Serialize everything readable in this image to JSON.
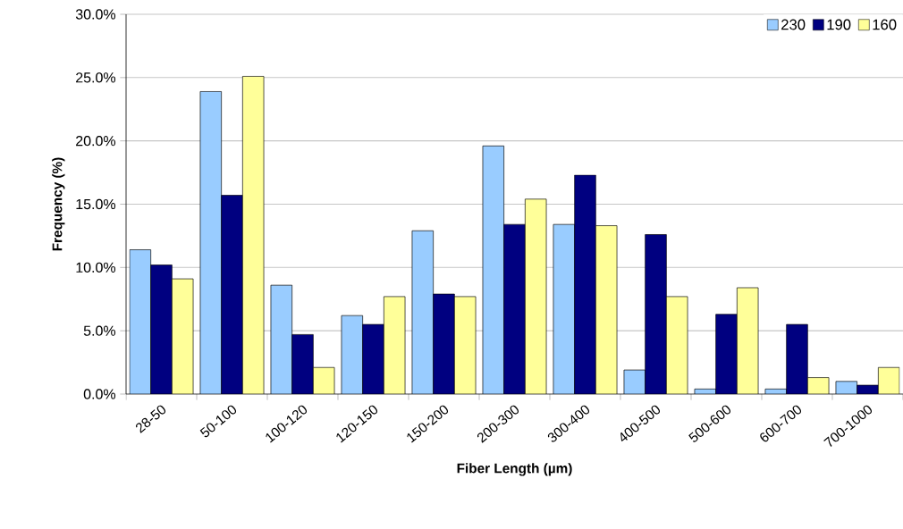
{
  "chart_data": {
    "type": "bar",
    "xlabel": "Fiber Length (µm)",
    "ylabel": "Frequency (%)",
    "categories": [
      "28-50",
      "50-100",
      "100-120",
      "120-150",
      "150-200",
      "200-300",
      "300-400",
      "400-500",
      "500-600",
      "600-700",
      "700-1000"
    ],
    "series": [
      {
        "name": "230",
        "color": "#99ccff",
        "values": [
          11.4,
          23.9,
          8.6,
          6.2,
          12.9,
          19.6,
          13.4,
          1.9,
          0.4,
          0.4,
          1.0
        ]
      },
      {
        "name": "190",
        "color": "#000080",
        "values": [
          10.2,
          15.7,
          4.7,
          5.5,
          7.9,
          13.4,
          17.3,
          12.6,
          6.3,
          5.5,
          0.7
        ]
      },
      {
        "name": "160",
        "color": "#ffff99",
        "values": [
          9.1,
          25.1,
          2.1,
          7.7,
          7.7,
          15.4,
          13.3,
          7.7,
          8.4,
          1.3,
          2.1
        ]
      }
    ],
    "ylim": [
      0,
      30
    ],
    "yticks": [
      {
        "value": 0,
        "label": "0.0%"
      },
      {
        "value": 5,
        "label": "5.0%"
      },
      {
        "value": 10,
        "label": "10.0%"
      },
      {
        "value": 15,
        "label": "15.0%"
      },
      {
        "value": 20,
        "label": "20.0%"
      },
      {
        "value": 25,
        "label": "25.0%"
      },
      {
        "value": 30,
        "label": "30.0%"
      }
    ],
    "grid": "y",
    "legend": "top right"
  }
}
